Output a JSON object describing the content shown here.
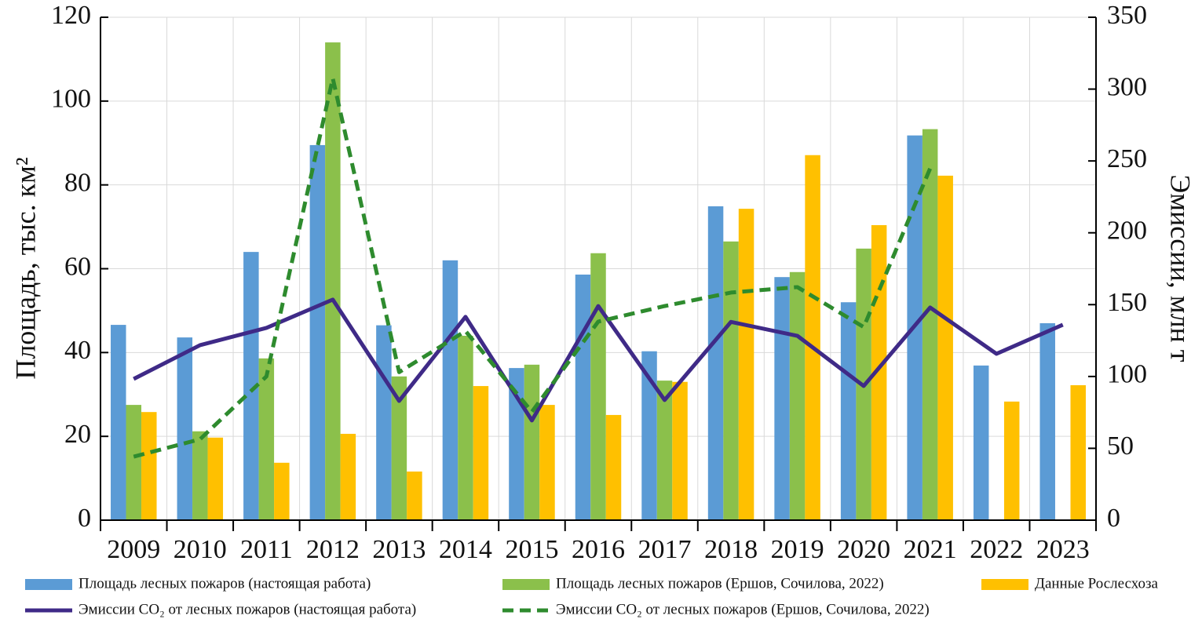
{
  "chart_data": {
    "type": "bar",
    "ylabel": "Площадь, тыс. км²",
    "y2label": "Эмиссии, млн т",
    "categories": [
      "2009",
      "2010",
      "2011",
      "2012",
      "2013",
      "2014",
      "2015",
      "2016",
      "2017",
      "2018",
      "2019",
      "2020",
      "2021",
      "2022",
      "2023"
    ],
    "ylim": [
      0,
      120
    ],
    "yticks": [
      0,
      20,
      40,
      60,
      80,
      100,
      120
    ],
    "y2lim": [
      0,
      350
    ],
    "y2ticks": [
      0,
      50,
      100,
      150,
      200,
      250,
      300,
      350
    ],
    "grid": true,
    "legend": "bottom",
    "series": [
      {
        "name": "Площадь лесных пожаров (настоящая работа)",
        "type": "bar",
        "color": "#5b9bd5",
        "values": [
          46.6,
          43.6,
          64,
          89.5,
          46.5,
          62,
          36.3,
          58.6,
          40.3,
          74.9,
          58,
          52,
          91.8,
          36.9,
          47
        ]
      },
      {
        "name": "Площадь лесных пожаров (Ершов, Сочилова, 2022)",
        "type": "bar",
        "color": "#8bc04b",
        "values": [
          27.5,
          21.2,
          38.6,
          114,
          34.3,
          44,
          37.1,
          63.7,
          33.3,
          66.5,
          59.2,
          64.8,
          93.3,
          null,
          null
        ]
      },
      {
        "name": "Данные Рослесхоза",
        "type": "bar",
        "color": "#ffc000",
        "values": [
          25.8,
          19.7,
          13.7,
          20.6,
          11.6,
          32,
          27.5,
          25.1,
          33,
          74.3,
          87.1,
          70.4,
          82.2,
          28.3,
          32.2
        ]
      },
      {
        "name": "Эмиссии CO₂ от лесных пожаров (настоящая работа)",
        "type": "line",
        "axis": "y2",
        "color": "#3f2a87",
        "dashed": false,
        "values": [
          98.3,
          121.8,
          133.8,
          153.5,
          83,
          141.5,
          69.4,
          149,
          83.6,
          138,
          128.3,
          93.4,
          148,
          115.8,
          136
        ]
      },
      {
        "name": "Эмиссии CO₂ от лесных пожаров (Ершов, Сочилова, 2022)",
        "type": "line",
        "axis": "y2",
        "color": "#2e8b2e",
        "dashed": true,
        "values": [
          44.2,
          56.3,
          100,
          307.5,
          103,
          131.6,
          75.4,
          138.2,
          149,
          158.4,
          162.2,
          134.4,
          244.7,
          null,
          null
        ]
      }
    ]
  }
}
